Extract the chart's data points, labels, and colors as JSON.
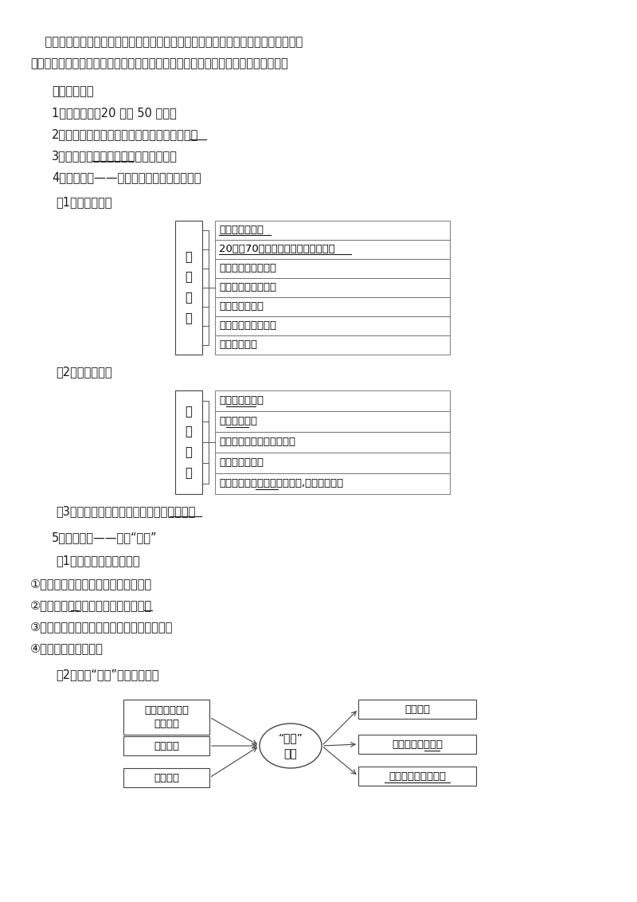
{
  "bg_color": "#ffffff",
  "text_color": "#1a1a1a",
  "para1": "    提示：鲁尔区将炼铁高炉建到荷兰海边，主要是为了就近获得通过鹿特丹港口进口的",
  "para2": "铁矿石，以节约运输费用，降低成本，同时也有利于鲁尔区的产业升级与环境保护。",
  "section_title": "二、新工业区",
  "item1": "1．兴起时间：20 世纪 50 年代。",
  "item2": "2．兴起地区：没有传统工业基础的乡村地区。",
  "item3_pre": "3．特征：中小型企业为主的工业地域。",
  "item4": "4．典型案例——意大利中部和东北部工业区",
  "sub1": "（1）形成条件。",
  "diagram1_label": "形\n成\n条\n件",
  "diagram1_items": [
    "大批廉价劳动力",
    "20世纪70年代原料和能源大幅度涨价",
    "发达的银行信贷体系",
    "意大利经济高度开放",
    "政府的大力支持",
    "小城镇用地用水方便",
    "交通运输方便"
  ],
  "sub2": "（2）主要特点。",
  "diagram2_label": "主\n要\n特\n点",
  "diagram2_items": [
    "以中小企业为主",
    "以轻工业为主",
    "集中了大量同类和相关企业",
    "生产高度专业化",
    "企业分布在小城镇，甚至农村,生产过程分散"
  ],
  "sub3": "（3）发展模式：中小企业集聚的工业小区。",
  "item5": "5．典型案例——美国“硅谷”",
  "sub4": "（1）高技术工业的特点。",
  "point1": "①从业人员具有高水平的知识和技能。",
  "point2": "②增长速度快，产品更新换代周期短。",
  "point3": "③研究开发费用在销售额中所占的比例较高。",
  "point4": "④产品面向世界市场。",
  "sub5": "（2）美国“硅谷”的区位条件。",
  "center_label": "“硅谷”\n崛起",
  "left_boxes": [
    "地理位置优越，\n环境优美",
    "交通便捷",
    "市场稳定"
  ],
  "right_boxes": [
    "气候宜人",
    "全世界的人才高地",
    "创新环境和创新文化"
  ]
}
